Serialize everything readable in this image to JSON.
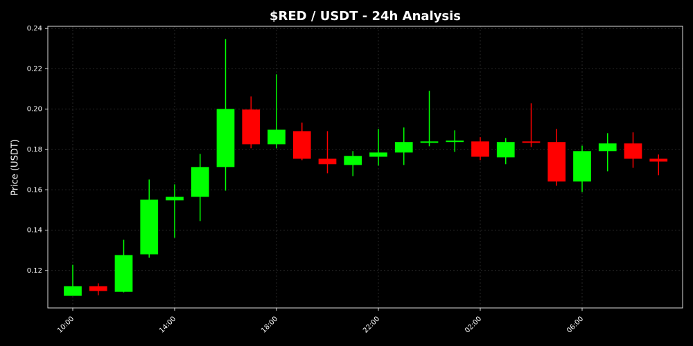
{
  "chart_data": {
    "type": "candlestick",
    "title": "$RED / USDT - 24h Analysis",
    "y_label": "Price (USDT)",
    "categories": [
      "10:00",
      null,
      null,
      null,
      "14:00",
      null,
      null,
      null,
      "18:00",
      null,
      null,
      null,
      "22:00",
      null,
      null,
      null,
      "02:00",
      null,
      null,
      null,
      "06:00",
      null,
      null,
      null
    ],
    "open": [
      0.1074,
      0.1122,
      0.1094,
      0.128,
      0.1548,
      0.1565,
      0.1713,
      0.1998,
      0.1826,
      0.1891,
      0.1754,
      0.1723,
      0.1764,
      0.1785,
      0.1833,
      0.1837,
      0.184,
      0.1761,
      0.184,
      0.1837,
      0.1641,
      0.1792,
      0.183,
      0.1754
    ],
    "high": [
      0.1228,
      0.1136,
      0.1352,
      0.1651,
      0.1627,
      0.1778,
      0.2348,
      0.2063,
      0.2173,
      0.1933,
      0.1891,
      0.1792,
      0.1902,
      0.1909,
      0.2091,
      0.1895,
      0.1861,
      0.1857,
      0.2029,
      0.1902,
      0.1819,
      0.1881,
      0.1885,
      0.1775
    ],
    "low": [
      0.1074,
      0.1077,
      0.1091,
      0.1263,
      0.1362,
      0.1445,
      0.1596,
      0.1806,
      0.1806,
      0.1747,
      0.1682,
      0.1668,
      0.172,
      0.1723,
      0.1816,
      0.1788,
      0.1747,
      0.1727,
      0.1812,
      0.162,
      0.1589,
      0.1692,
      0.1709,
      0.1672
    ],
    "close": [
      0.1122,
      0.1098,
      0.1276,
      0.1551,
      0.1565,
      0.1713,
      0.2001,
      0.1826,
      0.1898,
      0.1754,
      0.1727,
      0.1768,
      0.1785,
      0.1837,
      0.184,
      0.1844,
      0.1764,
      0.1837,
      0.1833,
      0.1641,
      0.1792,
      0.183,
      0.1754,
      0.174
    ],
    "up_color": "#00ff00",
    "down_color": "#ff0000",
    "ylim": [
      0.1014,
      0.2411
    ],
    "yticks": [
      0.12,
      0.14,
      0.16,
      0.18,
      {
        "value": 0.2,
        "label": "0.20"
      },
      0.22,
      0.24
    ],
    "grid": true
  }
}
